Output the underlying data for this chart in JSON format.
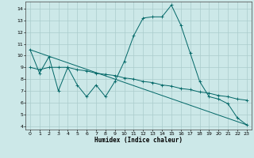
{
  "title": "",
  "xlabel": "Humidex (Indice chaleur)",
  "bg_color": "#cce8e8",
  "grid_color": "#aacccc",
  "line_color": "#006666",
  "x_ticks": [
    0,
    1,
    2,
    3,
    4,
    5,
    6,
    7,
    8,
    9,
    10,
    11,
    12,
    13,
    14,
    15,
    16,
    17,
    18,
    19,
    20,
    21,
    22,
    23
  ],
  "y_ticks": [
    4,
    5,
    6,
    7,
    8,
    9,
    10,
    11,
    12,
    13,
    14
  ],
  "ylim": [
    3.7,
    14.6
  ],
  "xlim": [
    -0.5,
    23.5
  ],
  "series1_x": [
    0,
    1,
    2,
    3,
    4,
    5,
    6,
    7,
    8,
    9,
    10,
    11,
    12,
    13,
    14,
    15,
    16,
    17,
    18,
    19,
    20,
    21,
    22,
    23
  ],
  "series1_y": [
    10.5,
    8.5,
    9.9,
    7.0,
    9.0,
    7.5,
    6.5,
    7.5,
    6.5,
    7.8,
    9.5,
    11.7,
    13.2,
    13.3,
    13.3,
    14.3,
    12.6,
    10.2,
    7.8,
    6.5,
    6.3,
    5.9,
    4.7,
    4.1
  ],
  "series2_x": [
    0,
    1,
    2,
    3,
    4,
    5,
    6,
    7,
    8,
    9,
    10,
    11,
    12,
    13,
    14,
    15,
    16,
    17,
    18,
    19,
    20,
    21,
    22,
    23
  ],
  "series2_y": [
    9.0,
    8.8,
    9.0,
    9.0,
    9.0,
    8.8,
    8.7,
    8.5,
    8.4,
    8.3,
    8.1,
    8.0,
    7.8,
    7.7,
    7.5,
    7.4,
    7.2,
    7.1,
    6.9,
    6.8,
    6.6,
    6.5,
    6.3,
    6.2
  ],
  "series3_x": [
    0,
    23
  ],
  "series3_y": [
    10.5,
    4.1
  ]
}
